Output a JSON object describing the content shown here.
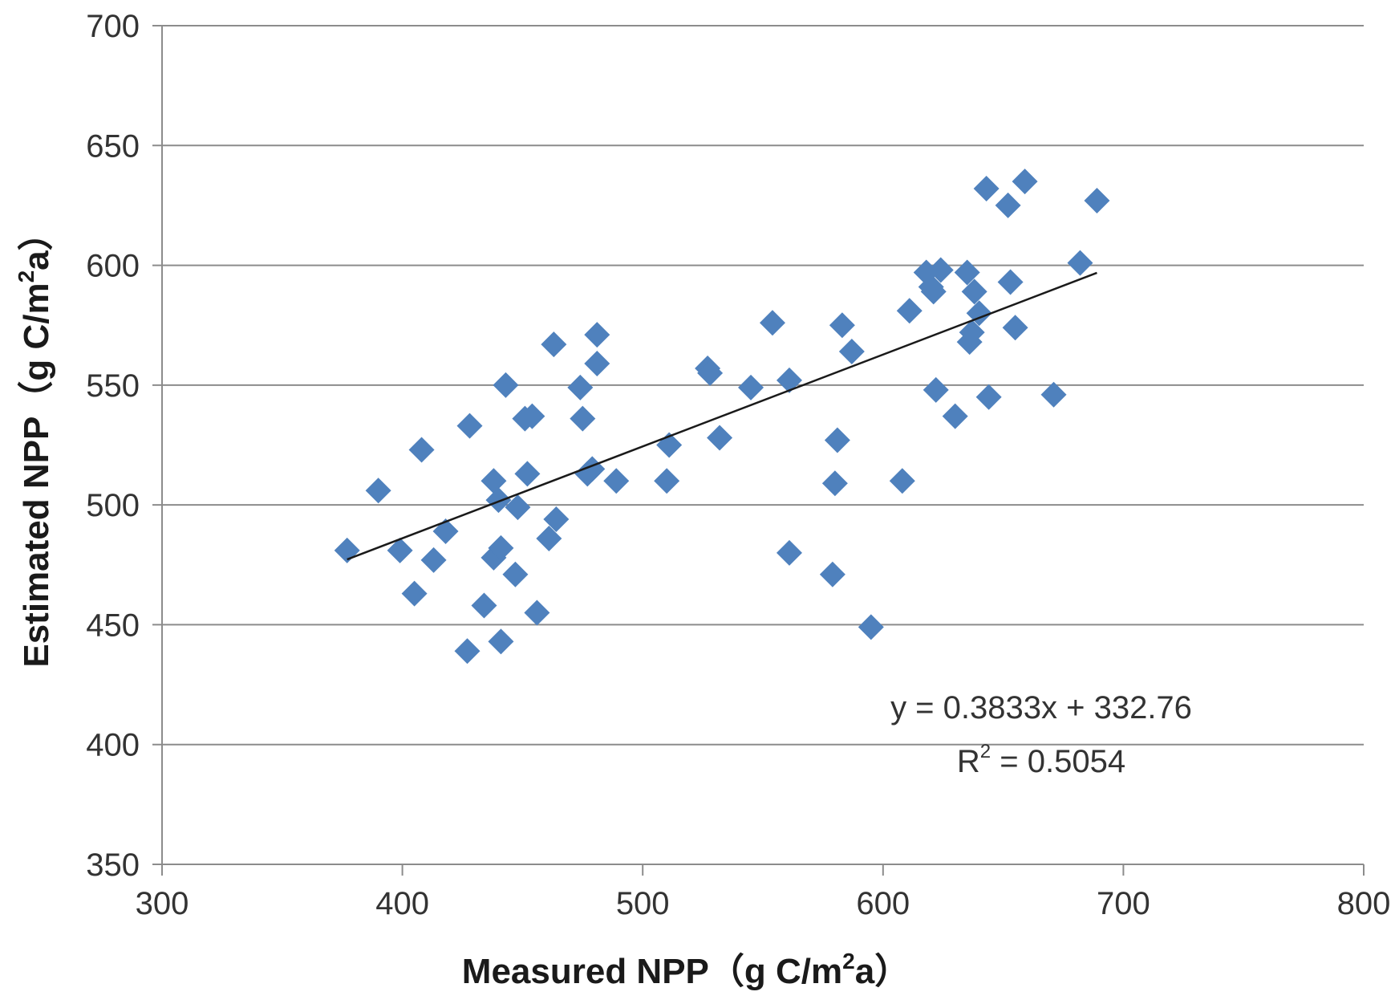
{
  "chart_data": {
    "type": "scatter",
    "xlabel_main": "Measured NPP（g C/m",
    "xlabel_sup": "2",
    "xlabel_tail": "a）",
    "ylabel_main": "Estimated NPP（g C/m",
    "ylabel_sup": "2",
    "ylabel_tail": "a）",
    "xlim": [
      300,
      800
    ],
    "ylim": [
      350,
      700
    ],
    "x_ticks": [
      300,
      400,
      500,
      600,
      700,
      800
    ],
    "y_ticks": [
      350,
      400,
      450,
      500,
      550,
      600,
      650,
      700
    ],
    "grid": "horizontal",
    "marker": "diamond",
    "marker_color": "#4f81bd",
    "line_color": "#1a1a1a",
    "trendline": {
      "slope": 0.3833,
      "intercept": 332.76,
      "x_range": [
        377,
        689
      ]
    },
    "equation_text": "y = 0.3833x + 332.76",
    "r2_prefix": "R",
    "r2_sup": "2",
    "r2_value": " = 0.5054",
    "points": [
      {
        "x": 377,
        "y": 481
      },
      {
        "x": 390,
        "y": 506
      },
      {
        "x": 399,
        "y": 481
      },
      {
        "x": 405,
        "y": 463
      },
      {
        "x": 408,
        "y": 523
      },
      {
        "x": 413,
        "y": 477
      },
      {
        "x": 418,
        "y": 489
      },
      {
        "x": 427,
        "y": 439
      },
      {
        "x": 428,
        "y": 533
      },
      {
        "x": 434,
        "y": 458
      },
      {
        "x": 438,
        "y": 510
      },
      {
        "x": 438,
        "y": 478
      },
      {
        "x": 440,
        "y": 502
      },
      {
        "x": 441,
        "y": 443
      },
      {
        "x": 441,
        "y": 482
      },
      {
        "x": 443,
        "y": 550
      },
      {
        "x": 447,
        "y": 471
      },
      {
        "x": 448,
        "y": 499
      },
      {
        "x": 451,
        "y": 536
      },
      {
        "x": 452,
        "y": 513
      },
      {
        "x": 454,
        "y": 537
      },
      {
        "x": 456,
        "y": 455
      },
      {
        "x": 461,
        "y": 486
      },
      {
        "x": 463,
        "y": 567
      },
      {
        "x": 464,
        "y": 494
      },
      {
        "x": 474,
        "y": 549
      },
      {
        "x": 475,
        "y": 536
      },
      {
        "x": 477,
        "y": 513
      },
      {
        "x": 479,
        "y": 515
      },
      {
        "x": 481,
        "y": 571
      },
      {
        "x": 481,
        "y": 559
      },
      {
        "x": 489,
        "y": 510
      },
      {
        "x": 510,
        "y": 510
      },
      {
        "x": 511,
        "y": 525
      },
      {
        "x": 527,
        "y": 557
      },
      {
        "x": 528,
        "y": 555
      },
      {
        "x": 532,
        "y": 528
      },
      {
        "x": 545,
        "y": 549
      },
      {
        "x": 554,
        "y": 576
      },
      {
        "x": 561,
        "y": 552
      },
      {
        "x": 561,
        "y": 480
      },
      {
        "x": 579,
        "y": 471
      },
      {
        "x": 580,
        "y": 509
      },
      {
        "x": 581,
        "y": 527
      },
      {
        "x": 583,
        "y": 575
      },
      {
        "x": 587,
        "y": 564
      },
      {
        "x": 595,
        "y": 449
      },
      {
        "x": 608,
        "y": 510
      },
      {
        "x": 611,
        "y": 581
      },
      {
        "x": 618,
        "y": 597
      },
      {
        "x": 620,
        "y": 591
      },
      {
        "x": 621,
        "y": 589
      },
      {
        "x": 622,
        "y": 548
      },
      {
        "x": 624,
        "y": 598
      },
      {
        "x": 630,
        "y": 537
      },
      {
        "x": 635,
        "y": 597
      },
      {
        "x": 636,
        "y": 568
      },
      {
        "x": 637,
        "y": 572
      },
      {
        "x": 638,
        "y": 589
      },
      {
        "x": 640,
        "y": 580
      },
      {
        "x": 643,
        "y": 632
      },
      {
        "x": 644,
        "y": 545
      },
      {
        "x": 652,
        "y": 625
      },
      {
        "x": 653,
        "y": 593
      },
      {
        "x": 655,
        "y": 574
      },
      {
        "x": 659,
        "y": 635
      },
      {
        "x": 671,
        "y": 546
      },
      {
        "x": 682,
        "y": 601
      },
      {
        "x": 689,
        "y": 627
      }
    ]
  }
}
